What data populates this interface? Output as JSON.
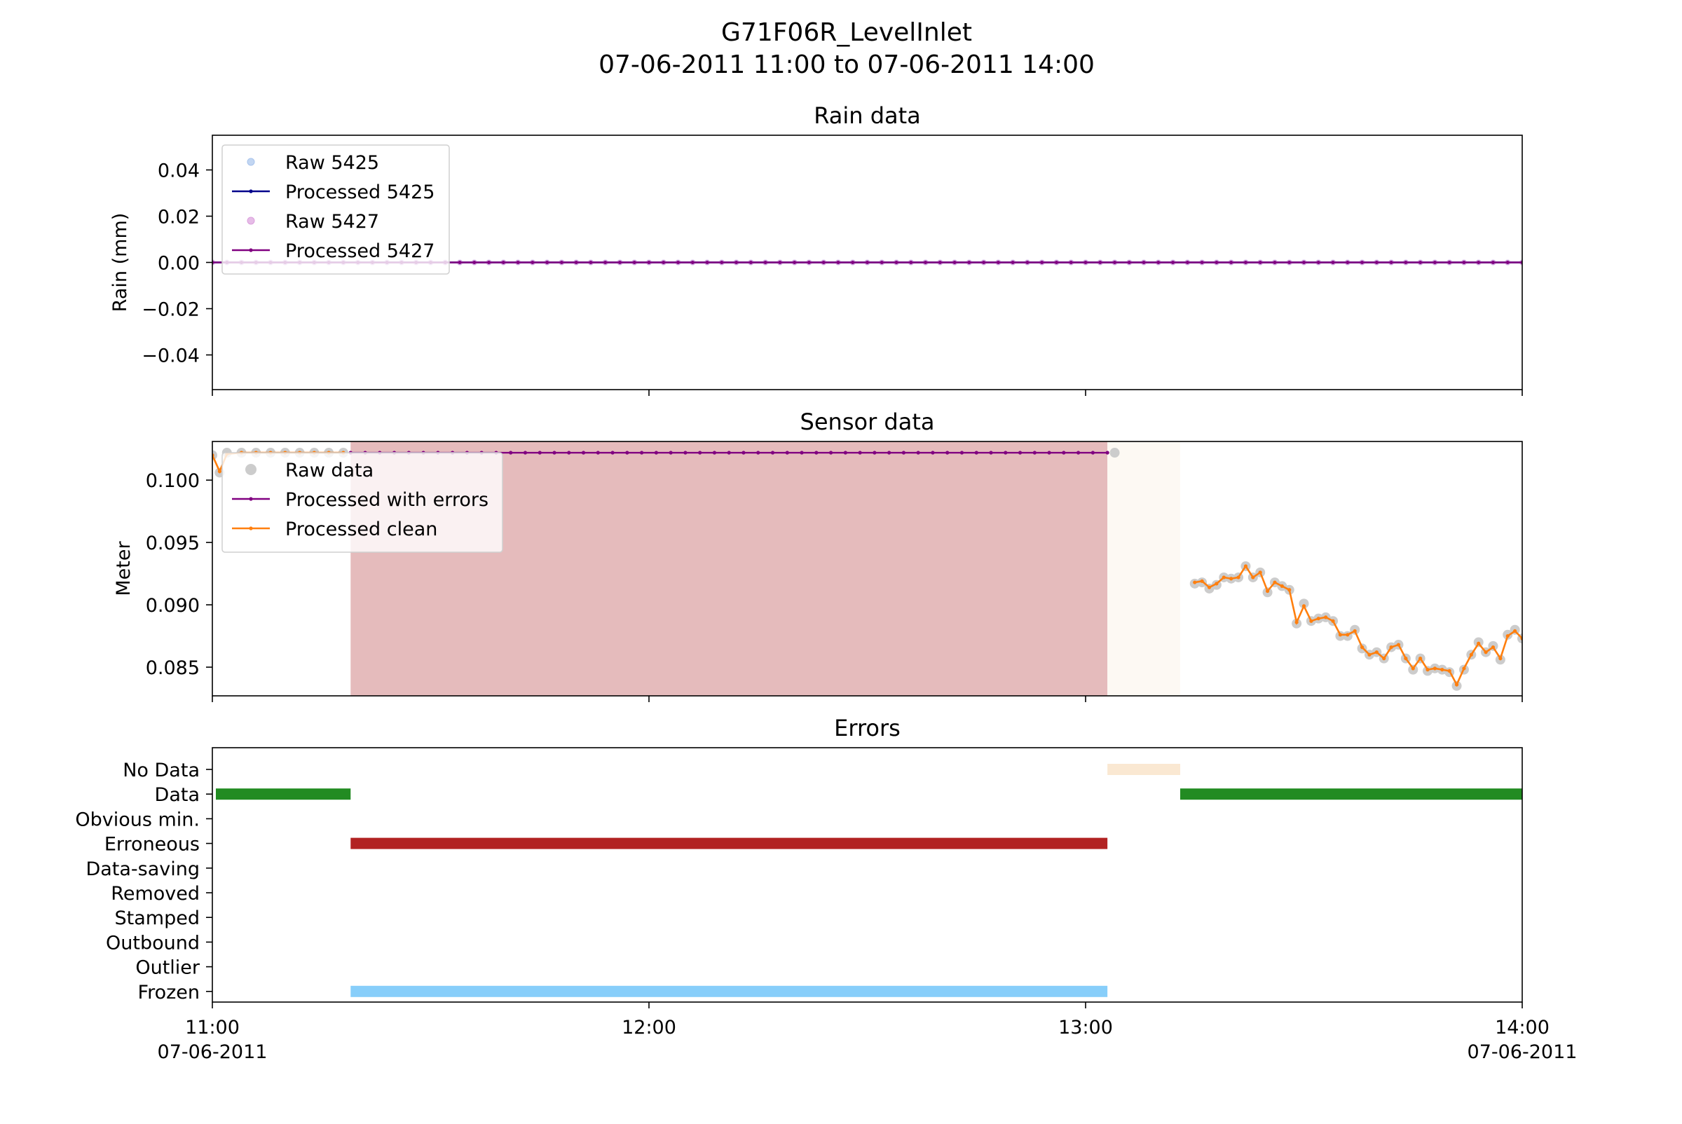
{
  "figure": {
    "title_line1": "G71F06R_LevelInlet",
    "title_line2": "07-06-2011 11:00 to 07-06-2011 14:00"
  },
  "x_axis": {
    "range": [
      "11:00",
      "14:00"
    ],
    "ticks": [
      {
        "time": "11:00",
        "label": "11:00",
        "sublabel": "07-06-2011"
      },
      {
        "time": "12:00",
        "label": "12:00",
        "sublabel": ""
      },
      {
        "time": "13:00",
        "label": "13:00",
        "sublabel": ""
      },
      {
        "time": "14:00",
        "label": "14:00",
        "sublabel": "07-06-2011"
      }
    ]
  },
  "chart_data": [
    {
      "type": "line",
      "title": "Rain data",
      "ylabel": "Rain (mm)",
      "ylim": [
        -0.055,
        0.055
      ],
      "yticks": [
        {
          "value": 0.04,
          "label": "0.04"
        },
        {
          "value": 0.02,
          "label": "0.02"
        },
        {
          "value": 0.0,
          "label": "0.00"
        },
        {
          "value": -0.02,
          "label": "−0.02"
        },
        {
          "value": -0.04,
          "label": "−0.04"
        }
      ],
      "time_step_minutes": 2,
      "legend_position": "upper-left",
      "series": [
        {
          "name": "Raw 5425",
          "style": "markers",
          "color": "#a8c4ec",
          "constant": 0.0
        },
        {
          "name": "Processed 5425",
          "style": "line-markers",
          "color": "#00008b",
          "constant": 0.0
        },
        {
          "name": "Raw 5427",
          "style": "markers",
          "color": "#dba0dd",
          "constant": 0.0
        },
        {
          "name": "Processed 5427",
          "style": "line-markers",
          "color": "#800080",
          "constant": 0.0
        }
      ]
    },
    {
      "type": "line",
      "title": "Sensor data",
      "ylabel": "Meter",
      "ylim": [
        0.0827,
        0.1031
      ],
      "yticks": [
        {
          "value": 0.1,
          "label": "0.100"
        },
        {
          "value": 0.095,
          "label": "0.095"
        },
        {
          "value": 0.09,
          "label": "0.090"
        },
        {
          "value": 0.085,
          "label": "0.085"
        }
      ],
      "legend_position": "upper-left",
      "shaded_spans": [
        {
          "from": "11:19",
          "to": "13:03",
          "color": "#e5bbbc",
          "meaning": "Erroneous"
        },
        {
          "from": "13:03",
          "to": "13:13",
          "color": "#fdf9f3",
          "meaning": "No Data"
        }
      ],
      "series": [
        {
          "name": "Raw data",
          "style": "markers",
          "color": "#cccccc",
          "points": [
            [
              "11:00",
              0.102
            ],
            [
              "11:01",
              0.1006
            ],
            [
              "11:02",
              0.1022
            ],
            [
              "11:04",
              0.1022
            ],
            [
              "11:06",
              0.1022
            ],
            [
              "11:08",
              0.1022
            ],
            [
              "11:10",
              0.1022
            ],
            [
              "11:12",
              0.1022
            ],
            [
              "11:14",
              0.1022
            ],
            [
              "11:16",
              0.1022
            ],
            [
              "11:18",
              0.1022
            ],
            [
              "13:04",
              0.1022
            ],
            [
              "13:15",
              0.0917
            ],
            [
              "13:16",
              0.0918
            ],
            [
              "13:17",
              0.0913
            ],
            [
              "13:18",
              0.0916
            ],
            [
              "13:19",
              0.0922
            ],
            [
              "13:20",
              0.0921
            ],
            [
              "13:21",
              0.0922
            ],
            [
              "13:22",
              0.0931
            ],
            [
              "13:23",
              0.0922
            ],
            [
              "13:24",
              0.0926
            ],
            [
              "13:25",
              0.091
            ],
            [
              "13:26",
              0.0918
            ],
            [
              "13:27",
              0.0915
            ],
            [
              "13:28",
              0.0912
            ],
            [
              "13:29",
              0.0885
            ],
            [
              "13:30",
              0.0901
            ],
            [
              "13:31",
              0.0887
            ],
            [
              "13:32",
              0.0889
            ],
            [
              "13:33",
              0.089
            ],
            [
              "13:34",
              0.0887
            ],
            [
              "13:35",
              0.0875
            ],
            [
              "13:36",
              0.0875
            ],
            [
              "13:37",
              0.088
            ],
            [
              "13:38",
              0.0865
            ],
            [
              "13:39",
              0.086
            ],
            [
              "13:40",
              0.0862
            ],
            [
              "13:41",
              0.0857
            ],
            [
              "13:42",
              0.0866
            ],
            [
              "13:43",
              0.0868
            ],
            [
              "13:44",
              0.0857
            ],
            [
              "13:45",
              0.0848
            ],
            [
              "13:46",
              0.0857
            ],
            [
              "13:47",
              0.0847
            ],
            [
              "13:48",
              0.0849
            ],
            [
              "13:49",
              0.0848
            ],
            [
              "13:50",
              0.0846
            ],
            [
              "13:51",
              0.0835
            ],
            [
              "13:52",
              0.0848
            ],
            [
              "13:53",
              0.086
            ],
            [
              "13:54",
              0.087
            ],
            [
              "13:55",
              0.0862
            ],
            [
              "13:56",
              0.0867
            ],
            [
              "13:57",
              0.0856
            ],
            [
              "13:58",
              0.0876
            ],
            [
              "13:59",
              0.088
            ],
            [
              "14:00",
              0.0873
            ]
          ]
        },
        {
          "name": "Processed with errors",
          "style": "line-markers",
          "color": "#800080",
          "segments": [
            {
              "from": "11:19",
              "to": "13:03",
              "step_minutes": 2,
              "value": 0.1022
            }
          ]
        },
        {
          "name": "Processed clean",
          "style": "line-markers",
          "color": "#ff7f0e",
          "points": [
            [
              "11:00",
              0.102
            ],
            [
              "11:01",
              0.1007
            ],
            [
              "11:02",
              0.1021
            ],
            [
              "11:04",
              0.1022
            ],
            [
              "11:06",
              0.1022
            ],
            [
              "11:08",
              0.1022
            ],
            [
              "11:10",
              0.1022
            ],
            [
              "11:12",
              0.1022
            ],
            [
              "11:14",
              0.1022
            ],
            [
              "11:16",
              0.1022
            ],
            [
              "11:18",
              0.1022
            ]
          ],
          "points_2": [
            [
              "13:15",
              0.0918
            ],
            [
              "13:16",
              0.0919
            ],
            [
              "13:17",
              0.0914
            ],
            [
              "13:18",
              0.0917
            ],
            [
              "13:19",
              0.0922
            ],
            [
              "13:20",
              0.0921
            ],
            [
              "13:21",
              0.0922
            ],
            [
              "13:22",
              0.0931
            ],
            [
              "13:23",
              0.0922
            ],
            [
              "13:24",
              0.0926
            ],
            [
              "13:25",
              0.0911
            ],
            [
              "13:26",
              0.0918
            ],
            [
              "13:27",
              0.0915
            ],
            [
              "13:28",
              0.0912
            ],
            [
              "13:29",
              0.0886
            ],
            [
              "13:30",
              0.0899
            ],
            [
              "13:31",
              0.0887
            ],
            [
              "13:32",
              0.0889
            ],
            [
              "13:33",
              0.089
            ],
            [
              "13:34",
              0.0887
            ],
            [
              "13:35",
              0.0876
            ],
            [
              "13:36",
              0.0876
            ],
            [
              "13:37",
              0.0879
            ],
            [
              "13:38",
              0.0866
            ],
            [
              "13:39",
              0.086
            ],
            [
              "13:40",
              0.0862
            ],
            [
              "13:41",
              0.0857
            ],
            [
              "13:42",
              0.0866
            ],
            [
              "13:43",
              0.0868
            ],
            [
              "13:44",
              0.0857
            ],
            [
              "13:45",
              0.0849
            ],
            [
              "13:46",
              0.0857
            ],
            [
              "13:47",
              0.0848
            ],
            [
              "13:48",
              0.0849
            ],
            [
              "13:49",
              0.0848
            ],
            [
              "13:50",
              0.0847
            ],
            [
              "13:51",
              0.0836
            ],
            [
              "13:52",
              0.0849
            ],
            [
              "13:53",
              0.086
            ],
            [
              "13:54",
              0.0869
            ],
            [
              "13:55",
              0.0862
            ],
            [
              "13:56",
              0.0866
            ],
            [
              "13:57",
              0.0857
            ],
            [
              "13:58",
              0.0875
            ],
            [
              "13:59",
              0.0879
            ],
            [
              "14:00",
              0.0873
            ]
          ]
        }
      ]
    },
    {
      "type": "timeline",
      "title": "Errors",
      "categories": [
        "No Data",
        "Data",
        "Obvious min.",
        "Erroneous",
        "Data-saving",
        "Removed",
        "Stamped",
        "Outbound",
        "Outlier",
        "Frozen"
      ],
      "intervals": [
        {
          "category": "No Data",
          "from": "13:03",
          "to": "13:13",
          "color": "#fae8d2"
        },
        {
          "category": "Data",
          "from": "11:00",
          "to": "11:19",
          "color": "#228b22"
        },
        {
          "category": "Data",
          "from": "13:13",
          "to": "14:00",
          "color": "#228b22"
        },
        {
          "category": "Erroneous",
          "from": "11:19",
          "to": "13:03",
          "color": "#b22222"
        },
        {
          "category": "Frozen",
          "from": "11:19",
          "to": "13:03",
          "color": "#87cefa"
        }
      ]
    }
  ]
}
